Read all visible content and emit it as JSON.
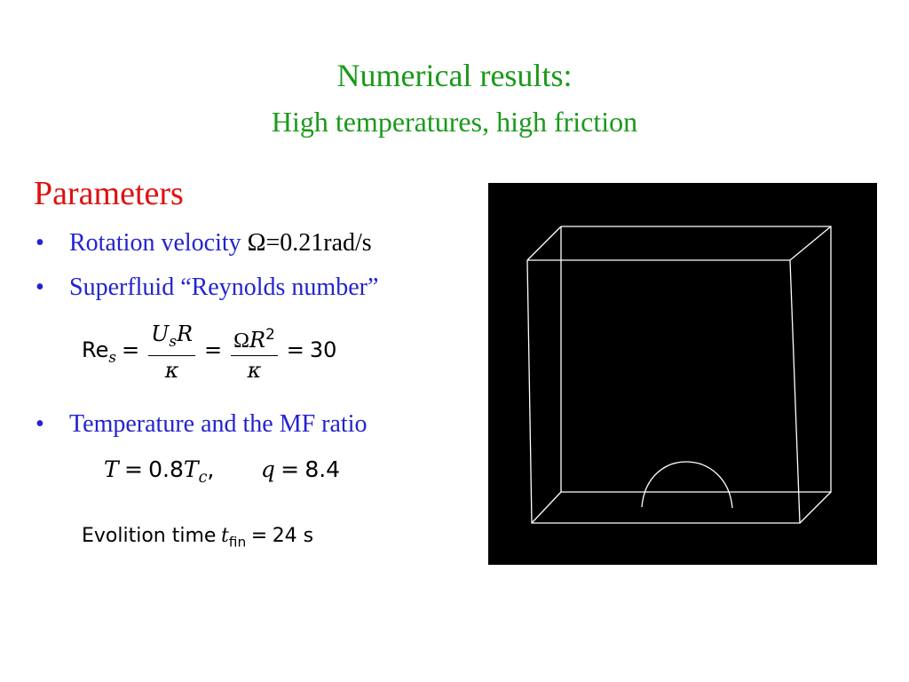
{
  "slide": {
    "title": "Numerical results:",
    "subtitle": "High temperatures, high friction",
    "section_heading": "Parameters",
    "bullets": [
      {
        "marker": "•",
        "text": "Rotation velocity ",
        "value": "Ω=0.21rad/s"
      },
      {
        "marker": "•",
        "text": "Superfluid “Reynolds number”"
      },
      {
        "marker": "•",
        "text": "Temperature and the MF ratio"
      }
    ],
    "equations": {
      "reynolds": {
        "lhs": "Re",
        "lhs_sub": "s",
        "eq": "=",
        "frac1_num_a": "U",
        "frac1_num_sub": "s",
        "frac1_num_b": "R",
        "frac1_den": "κ",
        "frac2_num_a": "Ω",
        "frac2_num_b": "R",
        "frac2_num_sup": "2",
        "frac2_den": "κ",
        "result": "30"
      },
      "temperature": {
        "T": "T",
        "eq": "=",
        "value": "0.8",
        "Tc": "T",
        "Tc_sub": "c",
        "comma": ",",
        "q": "q",
        "q_value": "8.4"
      },
      "evolution": {
        "label": "Evolition time",
        "t": "t",
        "t_sub": "fin",
        "eq": "=",
        "value": "24 s"
      }
    },
    "visualization": {
      "background_color": "#000000",
      "line_color": "#ffffff"
    }
  }
}
